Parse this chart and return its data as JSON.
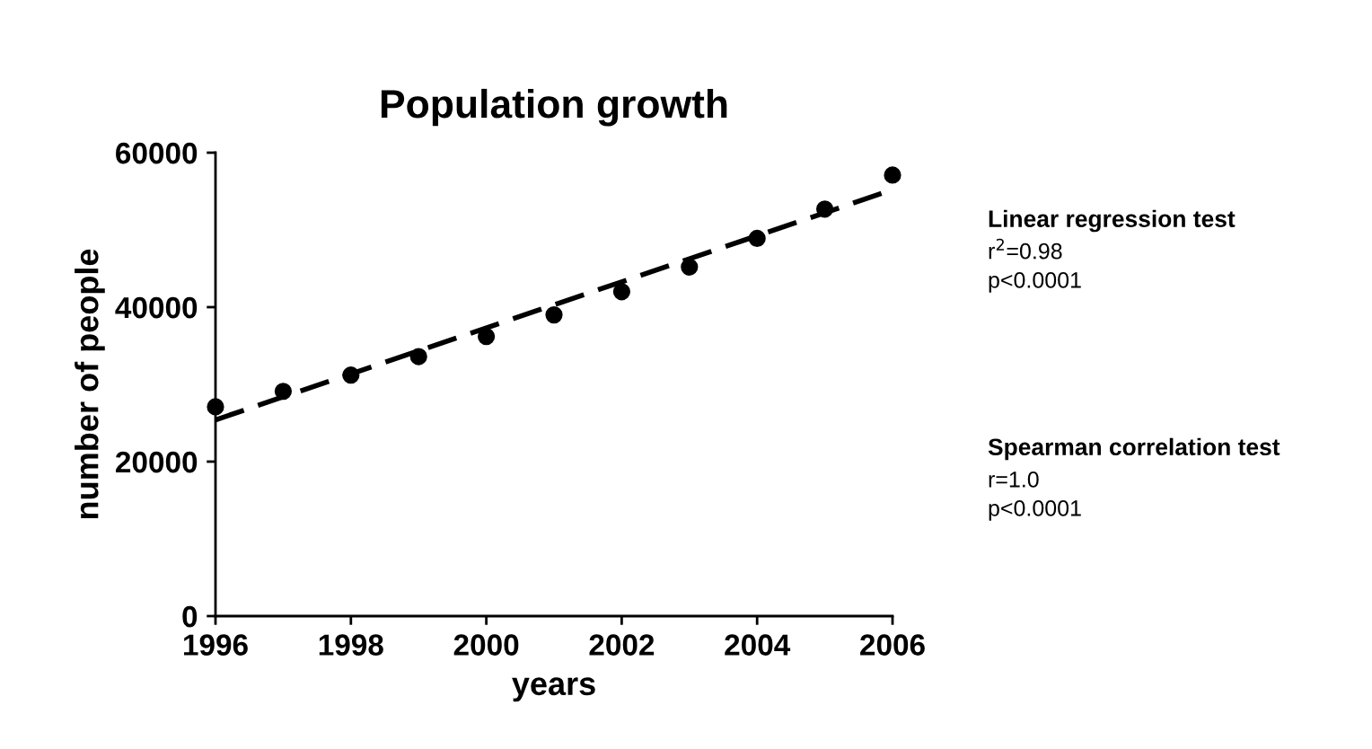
{
  "chart_data": {
    "type": "scatter",
    "title": "Population growth",
    "xlabel": "years",
    "ylabel": "number of people",
    "series": [
      {
        "color": "#000000",
        "marker": "circle",
        "x": [
          1996,
          1997,
          1998,
          1999,
          2000,
          2001,
          2002,
          2003,
          2004,
          2005,
          2006
        ],
        "values": [
          27100,
          29100,
          31200,
          33600,
          36200,
          39000,
          42000,
          45200,
          48900,
          52700,
          57100
        ]
      },
      {
        "type": "line",
        "color": "#000000",
        "line_style": "dashed",
        "marker": "none",
        "x": [
          1996,
          2006
        ],
        "values": [
          25400,
          55200
        ]
      }
    ],
    "xlim": [
      1996,
      2006
    ],
    "xticks": [
      1996,
      1998,
      2000,
      2002,
      2004,
      2006
    ],
    "ylim": [
      0,
      60000
    ],
    "yticks": [
      0,
      20000,
      40000,
      60000
    ],
    "grid": false,
    "legend": false,
    "annotations": [
      "Linear regression test",
      "r$^{2}$=0.98",
      "p<0.0001",
      "Spearman correlation test",
      "r=1.0",
      "p<0.0001"
    ]
  }
}
